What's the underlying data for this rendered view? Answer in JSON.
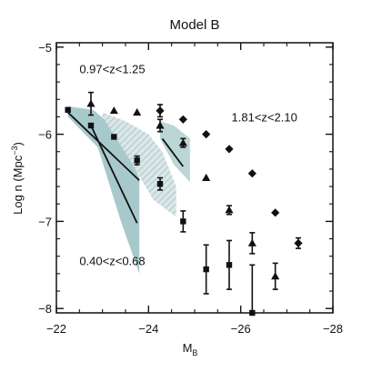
{
  "chart_data": {
    "type": "scatter",
    "title": "Model B",
    "xlabel": "M",
    "xlabel_sub": "B",
    "ylabel": "Log n (Mpc",
    "ylabel_sup": "−3",
    "ylabel_close": ")",
    "xlim": [
      -22,
      -28
    ],
    "ylim": [
      -8.05,
      -4.95
    ],
    "xticks": [
      -22,
      -24,
      -26,
      -28
    ],
    "xtick_labels": [
      "−22",
      "−24",
      "−26",
      "−28"
    ],
    "yticks": [
      -8,
      -7,
      -6,
      -5
    ],
    "ytick_labels": [
      "−8",
      "−7",
      "−6",
      "−5"
    ],
    "annotations": [
      {
        "text": "0.97<z<1.25",
        "x": -22.5,
        "y": -5.25
      },
      {
        "text": "1.81<z<2.10",
        "x": -25.8,
        "y": -5.8
      },
      {
        "text": "0.40<z<0.68",
        "x": -22.5,
        "y": -7.45
      }
    ],
    "series": [
      {
        "marker": "square",
        "points": [
          {
            "x": -22.25,
            "y": -5.72,
            "err": 0.0
          },
          {
            "x": -22.75,
            "y": -5.9,
            "err": 0.0
          },
          {
            "x": -23.25,
            "y": -6.03,
            "err": 0.0
          },
          {
            "x": -23.75,
            "y": -6.3,
            "err": 0.05
          },
          {
            "x": -24.25,
            "y": -6.57,
            "err": 0.07
          },
          {
            "x": -24.75,
            "y": -7.0,
            "err": 0.12
          },
          {
            "x": -25.25,
            "y": -7.55,
            "err": 0.28
          },
          {
            "x": -25.75,
            "y": -7.5,
            "err": 0.28
          },
          {
            "x": -26.25,
            "y": -8.05,
            "err": 0.55
          }
        ]
      },
      {
        "marker": "triangle",
        "points": [
          {
            "x": -22.75,
            "y": -5.65,
            "err": 0.13
          },
          {
            "x": -23.25,
            "y": -5.73,
            "err": 0.0
          },
          {
            "x": -23.75,
            "y": -5.75,
            "err": 0.0
          },
          {
            "x": -24.25,
            "y": -5.9,
            "err": 0.07
          },
          {
            "x": -24.75,
            "y": -6.1,
            "err": 0.05
          },
          {
            "x": -25.25,
            "y": -6.5,
            "err": 0.0
          },
          {
            "x": -25.75,
            "y": -6.87,
            "err": 0.05
          },
          {
            "x": -26.25,
            "y": -7.25,
            "err": 0.12
          },
          {
            "x": -26.75,
            "y": -7.63,
            "err": 0.15
          }
        ]
      },
      {
        "marker": "diamond",
        "points": [
          {
            "x": -24.25,
            "y": -5.73,
            "err": 0.07
          },
          {
            "x": -24.75,
            "y": -5.83,
            "err": 0.0
          },
          {
            "x": -25.25,
            "y": -6.0,
            "err": 0.0
          },
          {
            "x": -25.75,
            "y": -6.17,
            "err": 0.0
          },
          {
            "x": -26.25,
            "y": -6.45,
            "err": 0.0
          },
          {
            "x": -26.75,
            "y": -6.9,
            "err": 0.0
          },
          {
            "x": -27.25,
            "y": -7.25,
            "err": 0.06
          }
        ]
      }
    ],
    "model_lines": [
      {
        "x": [
          -22.25,
          -23.8
        ],
        "y": [
          -5.75,
          -6.53
        ]
      },
      {
        "x": [
          -22.75,
          -23.75
        ],
        "y": [
          -5.9,
          -7.02
        ]
      },
      {
        "x": [
          -24.3,
          -24.75
        ],
        "y": [
          -6.05,
          -6.37
        ]
      }
    ],
    "bands": [
      {
        "style": "solid",
        "color": "#9fc3c7",
        "upper": [
          [
            -22.25,
            -5.68
          ],
          [
            -22.8,
            -5.72
          ],
          [
            -23.2,
            -5.9
          ],
          [
            -23.55,
            -6.2
          ],
          [
            -23.8,
            -6.5
          ]
        ],
        "lower": [
          [
            -23.8,
            -7.6
          ],
          [
            -23.4,
            -7.0
          ],
          [
            -22.9,
            -6.15
          ],
          [
            -22.25,
            -5.8
          ]
        ]
      },
      {
        "style": "hatch",
        "color": "#a7c2c4",
        "upper": [
          [
            -23.0,
            -5.75
          ],
          [
            -23.5,
            -5.85
          ],
          [
            -24.0,
            -6.0
          ],
          [
            -24.3,
            -6.2
          ],
          [
            -24.6,
            -6.6
          ]
        ],
        "lower": [
          [
            -24.6,
            -6.95
          ],
          [
            -24.1,
            -6.75
          ],
          [
            -23.6,
            -6.3
          ],
          [
            -23.0,
            -5.8
          ]
        ]
      },
      {
        "style": "solid",
        "color": "#b5d2d2",
        "upper": [
          [
            -24.25,
            -5.85
          ],
          [
            -24.55,
            -5.9
          ],
          [
            -24.9,
            -6.05
          ]
        ],
        "lower": [
          [
            -24.9,
            -6.55
          ],
          [
            -24.55,
            -6.35
          ],
          [
            -24.25,
            -6.05
          ]
        ]
      }
    ]
  }
}
